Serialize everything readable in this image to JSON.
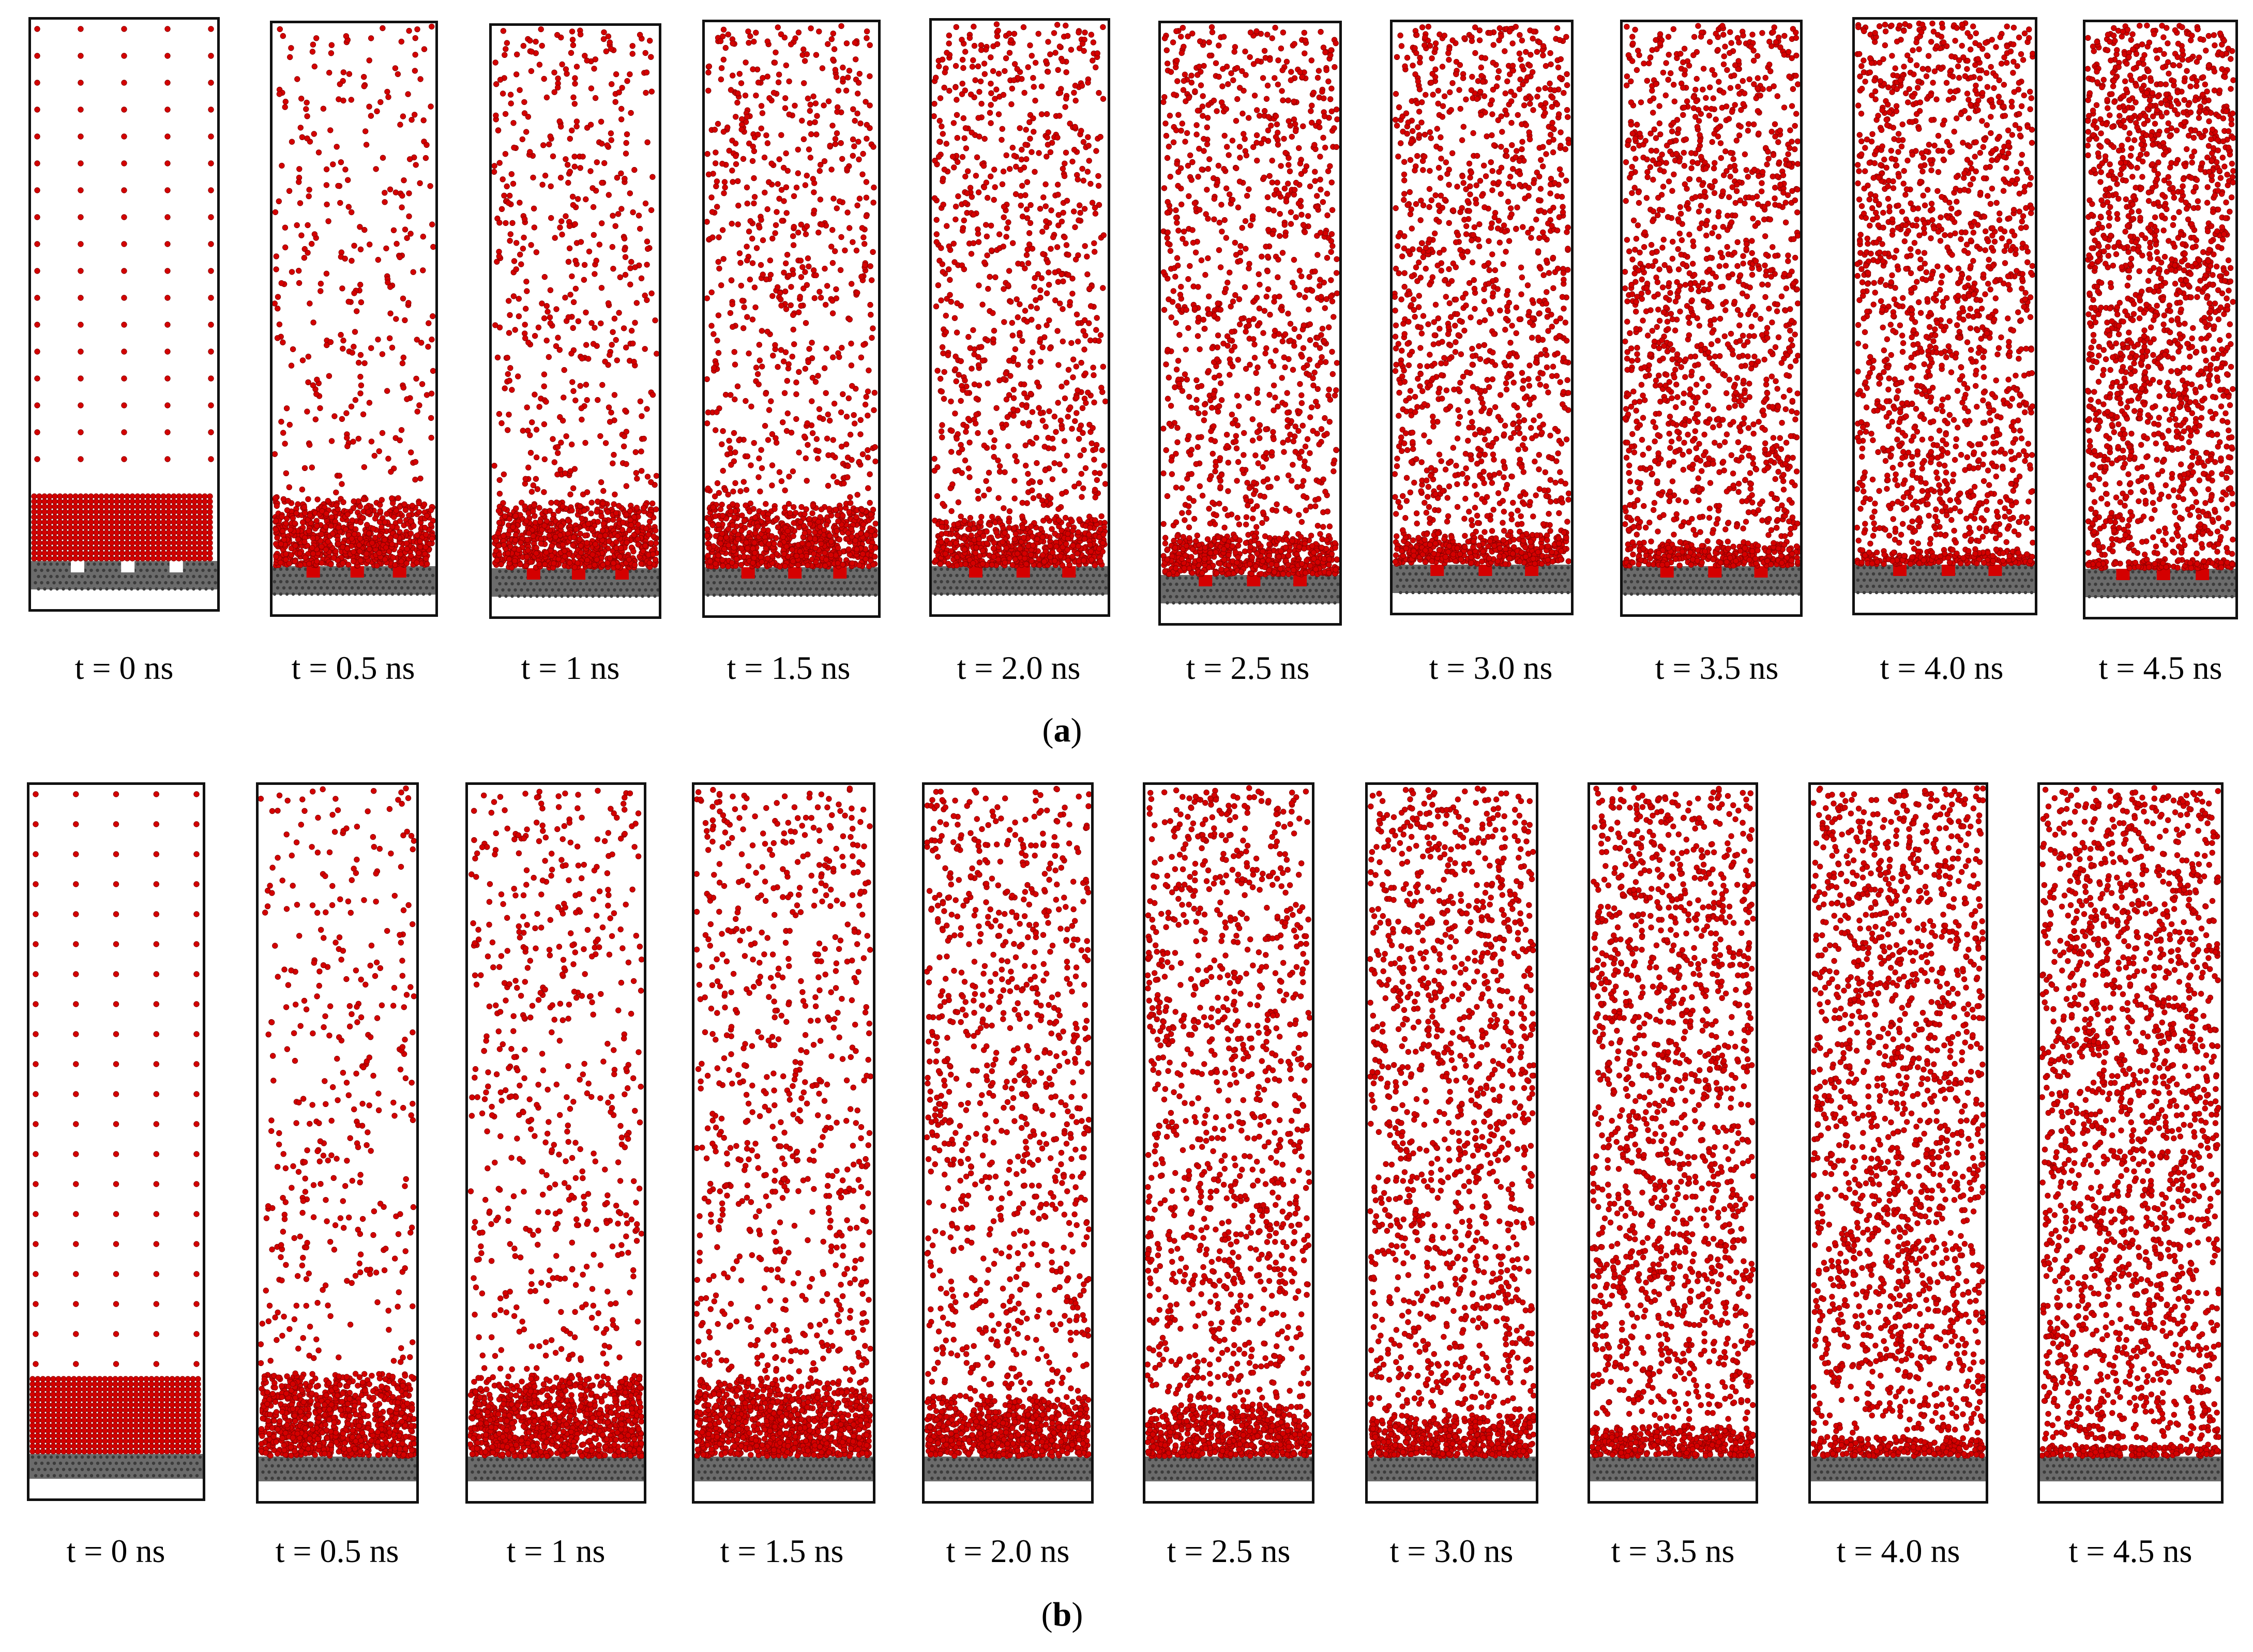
{
  "figure": {
    "colors": {
      "particle": "#d40000",
      "particle_edge": "#8a0000",
      "substrate": "#6b6b6b",
      "substrate_dot": "#3c3c3c",
      "frame": "#111111",
      "background": "#ffffff"
    },
    "panels": [
      {
        "id": "a",
        "caption_open": "(",
        "caption_letter": "a",
        "caption_close": ")",
        "substrate": "grooved",
        "snapshots": [
          {
            "label": "t = 0 ns",
            "time_ns": 0,
            "state": "initial_lattice"
          },
          {
            "label": "t = 0.5 ns",
            "time_ns": 0.5,
            "state": "evaporating"
          },
          {
            "label": "t = 1 ns",
            "time_ns": 1,
            "state": "evaporating"
          },
          {
            "label": "t = 1.5 ns",
            "time_ns": 1.5,
            "state": "evaporating"
          },
          {
            "label": "t = 2.0 ns",
            "time_ns": 2.0,
            "state": "evaporating"
          },
          {
            "label": "t = 2.5 ns",
            "time_ns": 2.5,
            "state": "evaporating"
          },
          {
            "label": "t = 3.0 ns",
            "time_ns": 3.0,
            "state": "evaporating"
          },
          {
            "label": "t = 3.5 ns",
            "time_ns": 3.5,
            "state": "evaporating"
          },
          {
            "label": "t = 4.0 ns",
            "time_ns": 4.0,
            "state": "evaporating"
          },
          {
            "label": "t = 4.5 ns",
            "time_ns": 4.5,
            "state": "evaporating"
          }
        ]
      },
      {
        "id": "b",
        "caption_open": "(",
        "caption_letter": "b",
        "caption_close": ")",
        "substrate": "flat",
        "snapshots": [
          {
            "label": "t = 0 ns",
            "time_ns": 0,
            "state": "initial_lattice"
          },
          {
            "label": "t = 0.5 ns",
            "time_ns": 0.5,
            "state": "evaporating"
          },
          {
            "label": "t = 1 ns",
            "time_ns": 1,
            "state": "evaporating"
          },
          {
            "label": "t = 1.5 ns",
            "time_ns": 1.5,
            "state": "evaporating"
          },
          {
            "label": "t = 2.0 ns",
            "time_ns": 2.0,
            "state": "evaporating"
          },
          {
            "label": "t = 2.5 ns",
            "time_ns": 2.5,
            "state": "evaporating"
          },
          {
            "label": "t = 3.0 ns",
            "time_ns": 3.0,
            "state": "evaporating"
          },
          {
            "label": "t = 3.5 ns",
            "time_ns": 3.5,
            "state": "evaporating"
          },
          {
            "label": "t = 4.0 ns",
            "time_ns": 4.0,
            "state": "evaporating"
          },
          {
            "label": "t = 4.5 ns",
            "time_ns": 4.5,
            "state": "evaporating"
          }
        ]
      }
    ]
  }
}
